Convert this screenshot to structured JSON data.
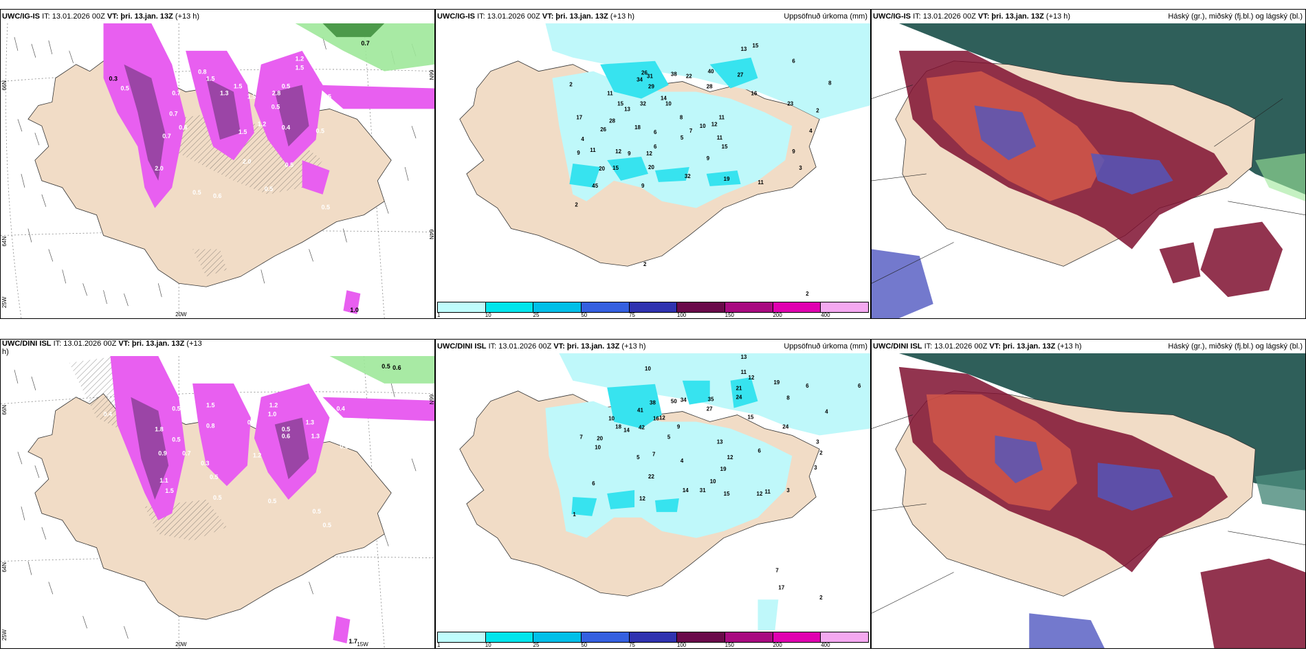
{
  "panels": {
    "p1": {
      "model": "UWC/IG-IS",
      "it": "IT: 13.01.2026 00Z",
      "vt_label": "VT:",
      "vt_value": "þri. 13.jan. 13Z",
      "lead": "(+13 h)",
      "right": "",
      "grid": {
        "lat_top": "66N",
        "lat_mid": "64N",
        "lon_left": "25W",
        "lon_mid": "20W",
        "lat_right": "66N",
        "lat_right2": "64N"
      },
      "contours": [
        "1.0",
        "0.5",
        "0.7",
        "1.2",
        "1.5",
        "1.5",
        "0.5",
        "0.8",
        "1.5",
        "1.3",
        "0.3",
        "0.5",
        "1.5",
        "0.7",
        "0.6",
        "0.5",
        "0.8",
        "1.5",
        "1.2",
        "2.0",
        "0.5",
        "0.6",
        "2.8",
        "0.6",
        "0.5",
        "0.4",
        "0.5",
        "0.5",
        "0.5",
        "0.7",
        "1.5",
        "2.0",
        "0.5",
        "0.7"
      ],
      "badge": "1.0"
    },
    "p2": {
      "model": "UWC/IG-IS",
      "it": "IT: 13.01.2026 00Z",
      "vt_label": "VT:",
      "vt_value": "þri. 13.jan. 13Z",
      "lead": "(+13 h)",
      "right": "Uppsöfnuð úrkoma (mm)",
      "values": [
        "13",
        "15",
        "26",
        "11",
        "34",
        "31",
        "38",
        "22",
        "40",
        "27",
        "6",
        "8",
        "2",
        "29",
        "15",
        "13",
        "32",
        "14",
        "10",
        "28",
        "16",
        "23",
        "17",
        "28",
        "18",
        "4",
        "8",
        "12",
        "11",
        "2",
        "26",
        "10",
        "6",
        "7",
        "5",
        "11",
        "9",
        "4",
        "6",
        "9",
        "11",
        "12",
        "9",
        "12",
        "15",
        "9",
        "20",
        "19",
        "3",
        "20",
        "32",
        "15",
        "11",
        "45",
        "9",
        "2",
        "2",
        "2"
      ]
    },
    "p3": {
      "model": "UWC/IG-IS",
      "it": "IT: 13.01.2026 00Z",
      "vt_label": "VT:",
      "vt_value": "þri. 13.jan. 13Z",
      "lead": "(+13 h)",
      "right": "Háský (gr.), miðský (fj.bl.) og lágský (bl.)"
    },
    "p4": {
      "model": "UWC/DINI ISL",
      "it": "IT: 13.01.2026 00Z",
      "vt_label": "VT:",
      "vt_value": "þri. 13.jan. 13Z",
      "lead": "(+13",
      "lead2": "h)",
      "right": "",
      "grid": {
        "lat_top": "66N",
        "lat_mid": "64N",
        "lon_left": "25W",
        "lon_mid": "20W",
        "lon_right": "15W",
        "lat_right": "66N"
      },
      "contours": [
        "1.0",
        "0.5",
        "0.6",
        "0.5",
        "0.4",
        "1.2",
        "0.5",
        "1.5",
        "1.8",
        "1.3",
        "0.5",
        "0.8",
        "0.4",
        "1.0",
        "0.5",
        "0.9",
        "0.5",
        "1.2",
        "0.6",
        "0.5",
        "0.3",
        "0.7",
        "0.5",
        "1.3",
        "0.5",
        "1.5",
        "0.5",
        "0.5",
        "0.5",
        "1.1",
        "0.5"
      ],
      "badge": "1.7"
    },
    "p5": {
      "model": "UWC/DINI ISL",
      "it": "IT: 13.01.2026 00Z",
      "vt_label": "VT:",
      "vt_value": "þri. 13.jan. 13Z",
      "lead": "(+13 h)",
      "right": "Uppsöfnuð úrkoma (mm)",
      "values": [
        "13",
        "11",
        "12",
        "10",
        "19",
        "6",
        "6",
        "21",
        "24",
        "8",
        "4",
        "15",
        "10",
        "41",
        "38",
        "50",
        "34",
        "35",
        "27",
        "16",
        "18",
        "20",
        "42",
        "14",
        "12",
        "9",
        "7",
        "5",
        "24",
        "13",
        "6",
        "3",
        "10",
        "5",
        "7",
        "4",
        "12",
        "2",
        "3",
        "19",
        "22",
        "14",
        "31",
        "10",
        "15",
        "12",
        "11",
        "3",
        "6",
        "12",
        "1",
        "7",
        "17",
        "2"
      ]
    },
    "p6": {
      "model": "UWC/DINI ISL",
      "it": "IT: 13.01.2026 00Z",
      "vt_label": "VT:",
      "vt_value": "þri. 13.jan. 13Z",
      "lead": "(+13 h)",
      "right": "Háský (gr.), miðský (fj.bl.) og lágský (bl.)"
    }
  },
  "colorbar": {
    "ticks": [
      "1",
      "10",
      "25",
      "50",
      "75",
      "100",
      "150",
      "200",
      "400"
    ],
    "colors": [
      "#bffcfc",
      "#00e5ec",
      "#00bfe8",
      "#3560e0",
      "#3033b0",
      "#6a0a4a",
      "#a80a80",
      "#e000b0",
      "#f4a8f0"
    ]
  },
  "colors": {
    "land": "#f1dcc6",
    "precip_light": "#bff8fa",
    "precip_mid": "#37e3ef",
    "magenta": "#e85ff0",
    "purple": "#7a3a86",
    "cloud_dark": "#2f5f5a",
    "cloud_red": "#7f1030",
    "cloud_blue": "#5058c0"
  }
}
